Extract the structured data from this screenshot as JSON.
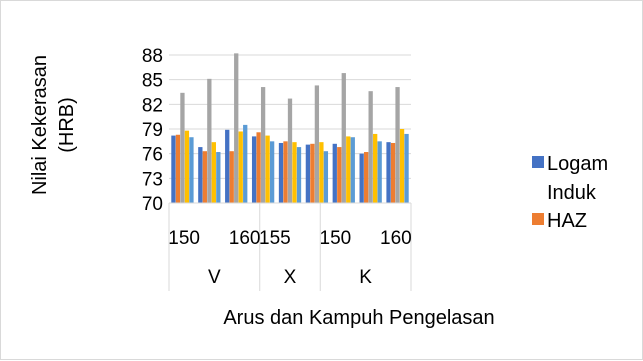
{
  "chart_data": {
    "type": "bar",
    "title": "",
    "xlabel": "Arus dan Kampuh Pengelasan",
    "ylabel": "Nilai Kekerasan (HRB)",
    "ylabel_lines": [
      "Nilai Kekerasan",
      "(HRB)"
    ],
    "ylim": [
      70,
      88
    ],
    "yticks": [
      70,
      73,
      76,
      79,
      82,
      85,
      88
    ],
    "grid": true,
    "legend_position": "right",
    "groups": [
      {
        "label": "V",
        "currents": [
          "150",
          "",
          "160"
        ]
      },
      {
        "label": "X",
        "currents": [
          "155",
          ""
        ]
      },
      {
        "label": "K",
        "currents": [
          "150",
          "",
          "160"
        ]
      }
    ],
    "cluster_count": 9,
    "series_colors": [
      "#4472c4",
      "#ed7d31",
      "#a5a5a5",
      "#ffc000",
      "#5b9bd5",
      "#70ad47"
    ],
    "clusters": [
      [
        78.2,
        78.3,
        83.4,
        78.8,
        78.0
      ],
      [
        76.8,
        76.3,
        85.1,
        77.4,
        76.2
      ],
      [
        78.9,
        76.3,
        88.2,
        78.7,
        79.5
      ],
      [
        78.1,
        78.6,
        84.1,
        78.2,
        77.5
      ],
      [
        77.3,
        77.5,
        82.7,
        77.4,
        76.8
      ],
      [
        77.1,
        77.2,
        84.3,
        77.4,
        76.3
      ],
      [
        77.2,
        76.8,
        85.8,
        78.1,
        78.0
      ],
      [
        76.0,
        76.2,
        83.6,
        78.4,
        77.5
      ],
      [
        77.4,
        77.3,
        84.1,
        79.0,
        78.4
      ]
    ],
    "legend": [
      {
        "label_lines": [
          "Logam",
          "Induk"
        ],
        "color": "#4472c4"
      },
      {
        "label_lines": [
          "HAZ"
        ],
        "color": "#ed7d31"
      }
    ]
  }
}
